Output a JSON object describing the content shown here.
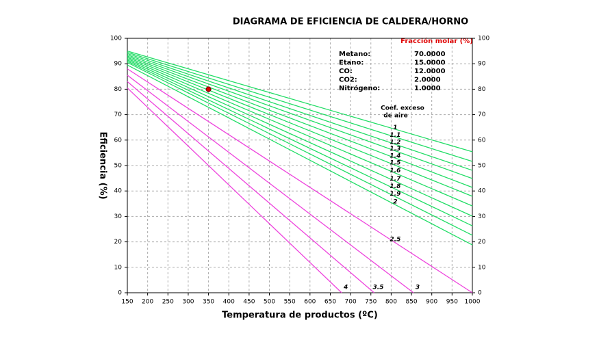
{
  "chart_data": {
    "type": "line",
    "title": "DIAGRAMA DE EFICIENCIA DE CALDERA/HORNO",
    "x_label": "Temperatura de productos (ºC)",
    "y_label": "Eficiencia (%)",
    "xlim": [
      150,
      1000
    ],
    "ylim": [
      0,
      100
    ],
    "xticks": [
      150,
      200,
      250,
      300,
      350,
      400,
      450,
      500,
      550,
      600,
      650,
      700,
      750,
      800,
      850,
      900,
      950,
      1000
    ],
    "yticks": [
      0,
      10,
      20,
      30,
      40,
      50,
      60,
      70,
      80,
      90,
      100
    ],
    "grid": true,
    "legend_title": [
      "Coef. exceso",
      "de aire"
    ],
    "series": [
      {
        "name": "1",
        "color": "#22dd66",
        "x": [
          150,
          1000
        ],
        "values": [
          95,
          55.4
        ]
      },
      {
        "name": "1.1",
        "color": "#22dd66",
        "x": [
          150,
          1000
        ],
        "values": [
          94.5,
          51.6
        ]
      },
      {
        "name": "1.2",
        "color": "#22dd66",
        "x": [
          150,
          1000
        ],
        "values": [
          94,
          48.1
        ]
      },
      {
        "name": "1.3",
        "color": "#22dd66",
        "x": [
          150,
          1000
        ],
        "values": [
          93.5,
          44.9
        ]
      },
      {
        "name": "1.4",
        "color": "#22dd66",
        "x": [
          150,
          1000
        ],
        "values": [
          93,
          41.4
        ]
      },
      {
        "name": "1.5",
        "color": "#22dd66",
        "x": [
          150,
          1000
        ],
        "values": [
          92.5,
          37.9
        ]
      },
      {
        "name": "1.6",
        "color": "#22dd66",
        "x": [
          150,
          1000
        ],
        "values": [
          92,
          34.1
        ]
      },
      {
        "name": "1.7",
        "color": "#22dd66",
        "x": [
          150,
          1000
        ],
        "values": [
          91.5,
          30.1
        ]
      },
      {
        "name": "1.8",
        "color": "#22dd66",
        "x": [
          150,
          1000
        ],
        "values": [
          91,
          26.3
        ]
      },
      {
        "name": "1.9",
        "color": "#22dd66",
        "x": [
          150,
          1000
        ],
        "values": [
          90.5,
          22.6
        ]
      },
      {
        "name": "2",
        "color": "#22dd66",
        "x": [
          150,
          1000
        ],
        "values": [
          89.5,
          18.8
        ]
      },
      {
        "name": "2.5",
        "color": "#ee44dd",
        "x": [
          150,
          1000
        ],
        "values": [
          88,
          0
        ]
      },
      {
        "name": "3",
        "color": "#ee44dd",
        "x": [
          150,
          855
        ],
        "values": [
          85.5,
          0
        ]
      },
      {
        "name": "3.5",
        "color": "#ee44dd",
        "x": [
          150,
          758
        ],
        "values": [
          83,
          0
        ]
      },
      {
        "name": "4",
        "color": "#ee44dd",
        "x": [
          150,
          678
        ],
        "values": [
          80.5,
          0
        ]
      }
    ],
    "point": {
      "x": 350,
      "y": 80,
      "color": "#dd0000"
    },
    "composition": {
      "title": "Fracción molar (%)",
      "rows": [
        {
          "label": "Metano:",
          "value": "70.0000"
        },
        {
          "label": "Etano:",
          "value": "15.0000"
        },
        {
          "label": "CO:",
          "value": "12.0000"
        },
        {
          "label": "CO2:",
          "value": "2.0000"
        },
        {
          "label": "Nitrógeno:",
          "value": "1.0000"
        }
      ]
    }
  }
}
